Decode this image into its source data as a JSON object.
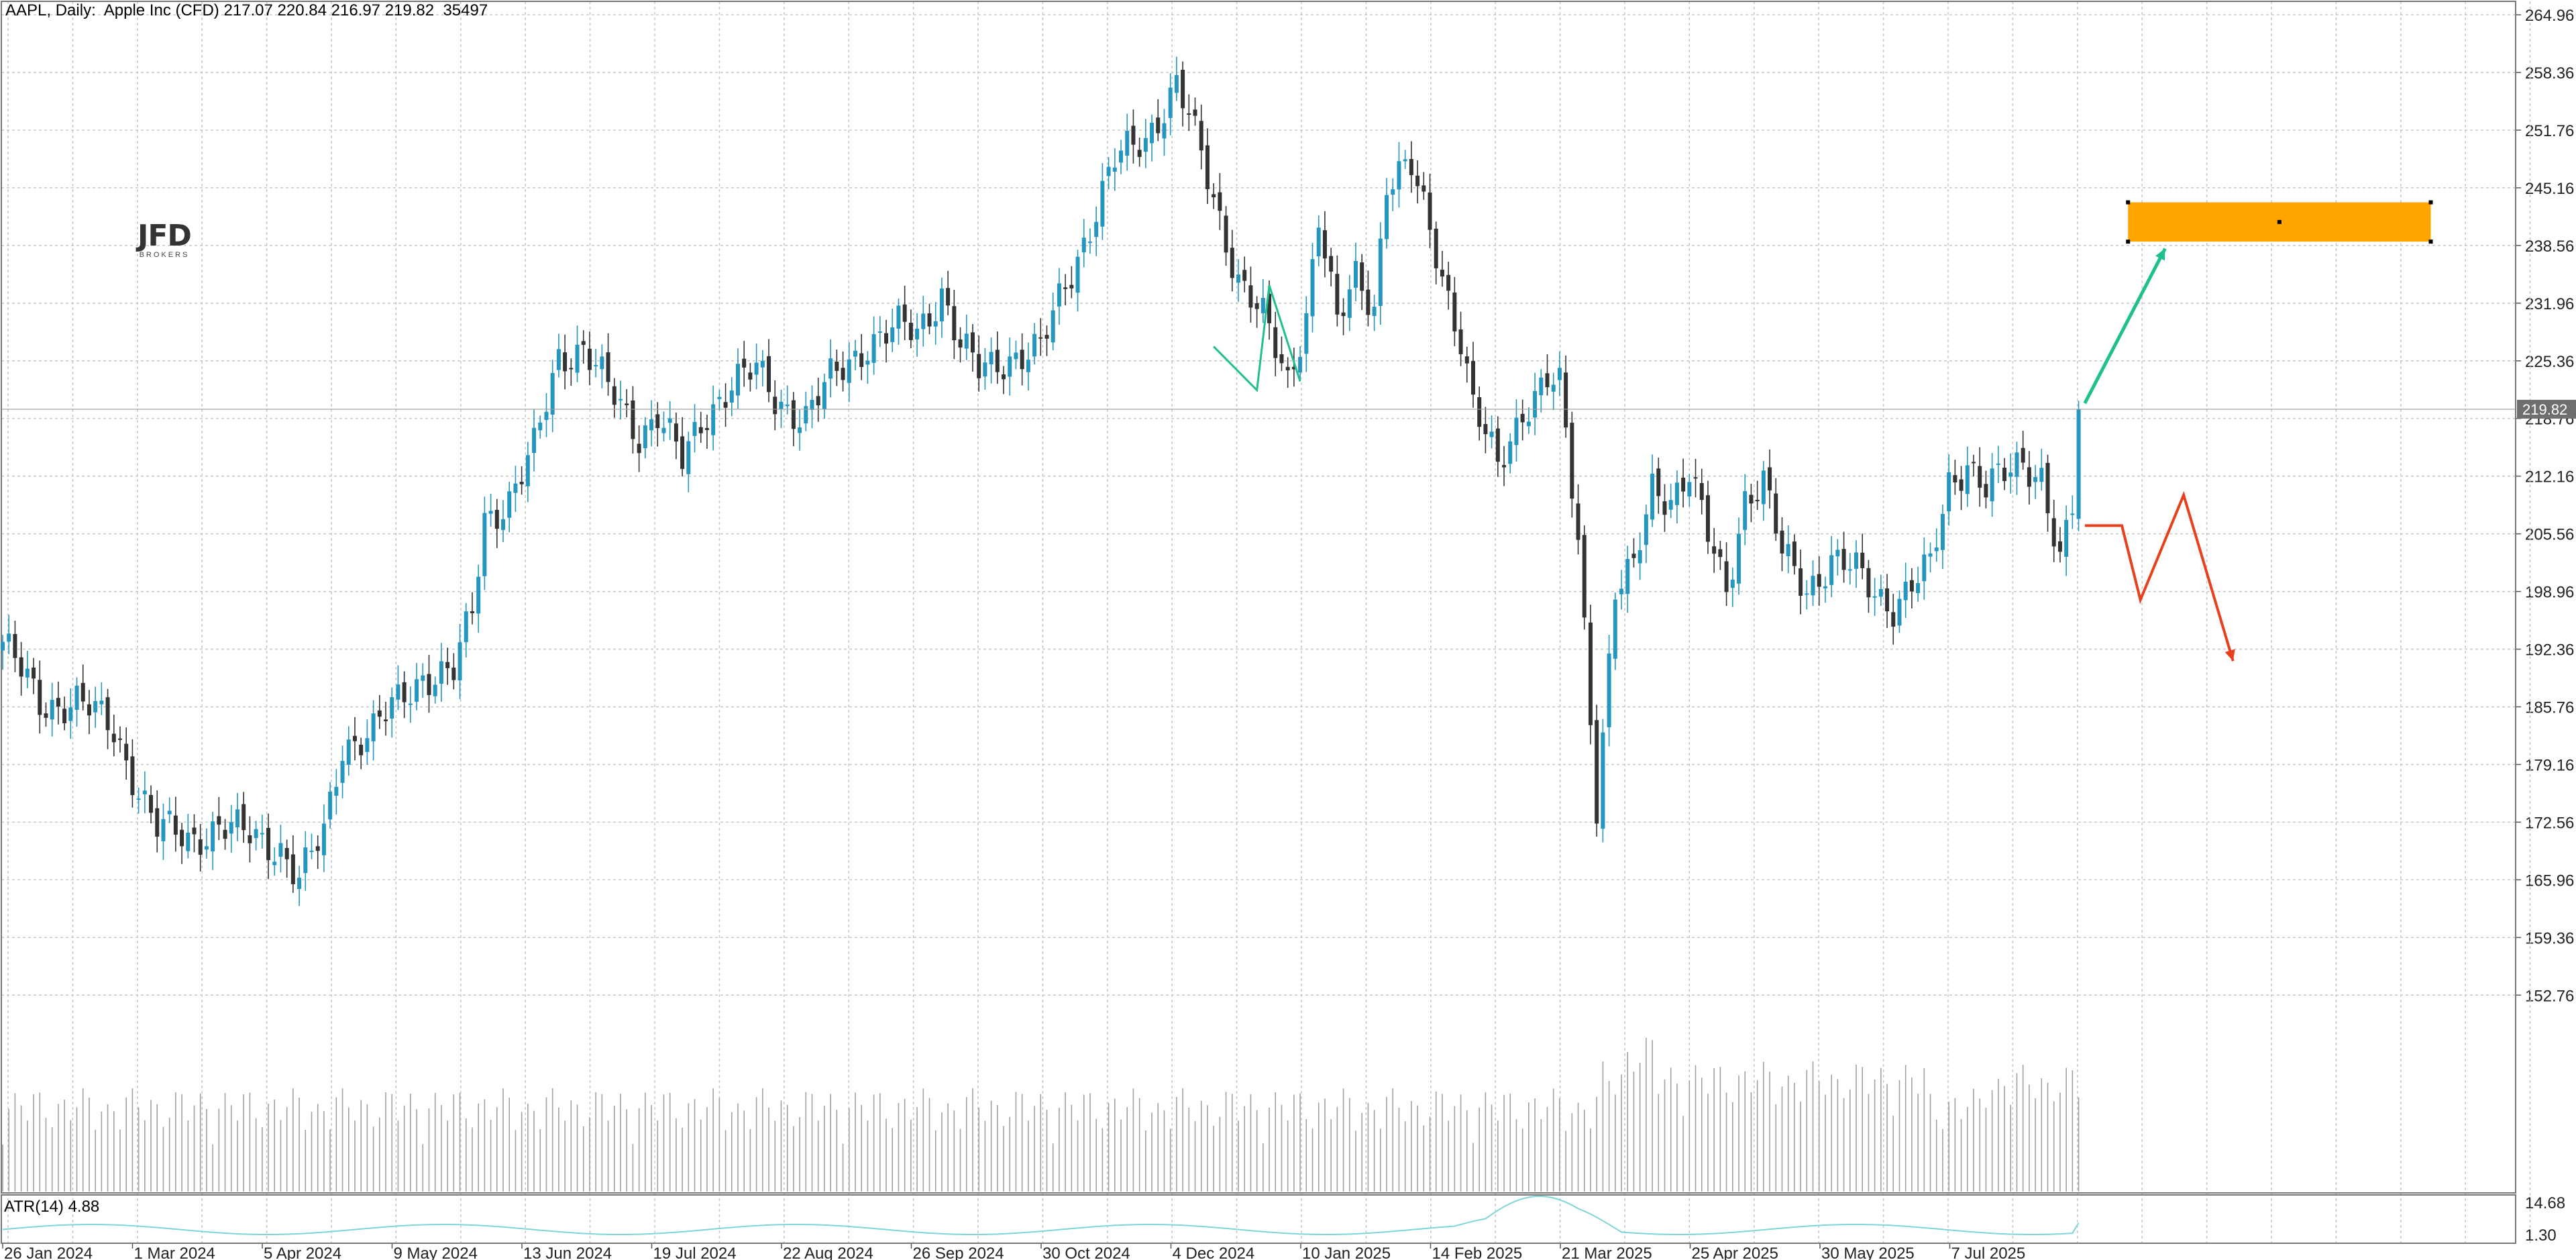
{
  "header": {
    "symbol": "AAPL",
    "timeframe": "Daily",
    "instrument": "Apple Inc (CFD)",
    "ohlc": "217.07 220.84 216.97 219.82",
    "volume": "35497"
  },
  "logo": {
    "text": "JFD",
    "subtext": "BROKERS"
  },
  "atr_label": "ATR(14) 4.88",
  "colors": {
    "up_candle": "#2596be",
    "down_candle": "#333333",
    "grid": "#c8c8c8",
    "zone": "#ffa500",
    "arrow_up": "#1fbf8f",
    "arrow_down": "#e8401c",
    "atr_line": "#7fd6d6",
    "volume": "#a0a0a0"
  },
  "chart_data": {
    "type": "candlestick",
    "title": "AAPL, Daily: Apple Inc (CFD)",
    "ylim": [
      146.1,
      266.5
    ],
    "y_ticks": [
      "264.96",
      "258.36",
      "251.76",
      "245.16",
      "238.56",
      "231.96",
      "225.36",
      "218.76",
      "212.16",
      "205.56",
      "198.96",
      "192.36",
      "185.76",
      "179.16",
      "172.56",
      "165.96",
      "159.36",
      "152.76"
    ],
    "x_ticks": [
      "26 Jan 2024",
      "1 Mar 2024",
      "5 Apr 2024",
      "9 May 2024",
      "13 Jun 2024",
      "19 Jul 2024",
      "22 Aug 2024",
      "26 Sep 2024",
      "30 Oct 2024",
      "4 Dec 2024",
      "10 Jan 2025",
      "14 Feb 2025",
      "21 Mar 2025",
      "25 Apr 2025",
      "30 May 2025",
      "7 Jul 2025"
    ],
    "last_price": "219.82",
    "price_path": [
      [
        0,
        193.2
      ],
      [
        6,
        186
      ],
      [
        12,
        186.5
      ],
      [
        18,
        183
      ],
      [
        25,
        171.8
      ],
      [
        30,
        170.5
      ],
      [
        35,
        172.3
      ],
      [
        40,
        170.8
      ],
      [
        45,
        169.8
      ],
      [
        48,
        166
      ],
      [
        52,
        171
      ],
      [
        55,
        181.5
      ],
      [
        60,
        183
      ],
      [
        65,
        187
      ],
      [
        68,
        189.5
      ],
      [
        73,
        189.5
      ],
      [
        76,
        196.5
      ],
      [
        78,
        207.5
      ],
      [
        82,
        209.5
      ],
      [
        86,
        215
      ],
      [
        90,
        226
      ],
      [
        94,
        227
      ],
      [
        98,
        222
      ],
      [
        103,
        217
      ],
      [
        106,
        219.5
      ],
      [
        110,
        213.5
      ],
      [
        114,
        219.5
      ],
      [
        118,
        223
      ],
      [
        122,
        224
      ],
      [
        125,
        221
      ],
      [
        130,
        219
      ],
      [
        134,
        223
      ],
      [
        140,
        227.5
      ],
      [
        145,
        229
      ],
      [
        148,
        228.5
      ],
      [
        152,
        233.5
      ],
      [
        155,
        227
      ],
      [
        158,
        224
      ],
      [
        163,
        226
      ],
      [
        168,
        226.5
      ],
      [
        172,
        234
      ],
      [
        176,
        241
      ],
      [
        180,
        248
      ],
      [
        185,
        251
      ],
      [
        190,
        257
      ],
      [
        192,
        253
      ],
      [
        196,
        244
      ],
      [
        200,
        235
      ],
      [
        204,
        230
      ],
      [
        208,
        223
      ],
      [
        211,
        231
      ],
      [
        213,
        242
      ],
      [
        216,
        229
      ],
      [
        219,
        235
      ],
      [
        222,
        232
      ],
      [
        224,
        246
      ],
      [
        228,
        247
      ],
      [
        232,
        238
      ],
      [
        236,
        228
      ],
      [
        238,
        220
      ],
      [
        242,
        213
      ],
      [
        246,
        220
      ],
      [
        250,
        223
      ],
      [
        252,
        222
      ],
      [
        255,
        205
      ],
      [
        258,
        175
      ],
      [
        261,
        199
      ],
      [
        264,
        201
      ],
      [
        267,
        211
      ],
      [
        270,
        210
      ],
      [
        273,
        212.5
      ],
      [
        276,
        205
      ],
      [
        279,
        199
      ],
      [
        282,
        210
      ],
      [
        285,
        211.5
      ],
      [
        288,
        203
      ],
      [
        292,
        199.5
      ],
      [
        296,
        202.5
      ],
      [
        300,
        201
      ],
      [
        303,
        199
      ],
      [
        306,
        197.5
      ],
      [
        309,
        199.5
      ],
      [
        312,
        201.5
      ],
      [
        315,
        211.5
      ],
      [
        318,
        214
      ],
      [
        321,
        210.5
      ],
      [
        324,
        212
      ],
      [
        327,
        214
      ],
      [
        330,
        212.5
      ],
      [
        333,
        202
      ],
      [
        335,
        208
      ],
      [
        336,
        219.8
      ]
    ],
    "volume_bars": 337,
    "atr": {
      "name": "ATR(14)",
      "value": 4.88,
      "ylim_labels": [
        "14.68",
        "1.30"
      ]
    },
    "annotations": {
      "target_zone": {
        "low": 239.0,
        "high": 243.5,
        "start_bar": 344,
        "end_bar": 393
      },
      "bullish_arrow": {
        "from": [
          337,
          220.5
        ],
        "to": [
          350,
          238.2
        ]
      },
      "bearish_path": [
        [
          337,
          206.5
        ],
        [
          343,
          206.5
        ],
        [
          346,
          198
        ],
        [
          353,
          210
        ],
        [
          361,
          191
        ]
      ],
      "pattern_lines": [
        [
          196,
          227
        ],
        [
          203,
          222
        ],
        [
          205,
          234
        ],
        [
          210,
          223
        ]
      ]
    }
  }
}
